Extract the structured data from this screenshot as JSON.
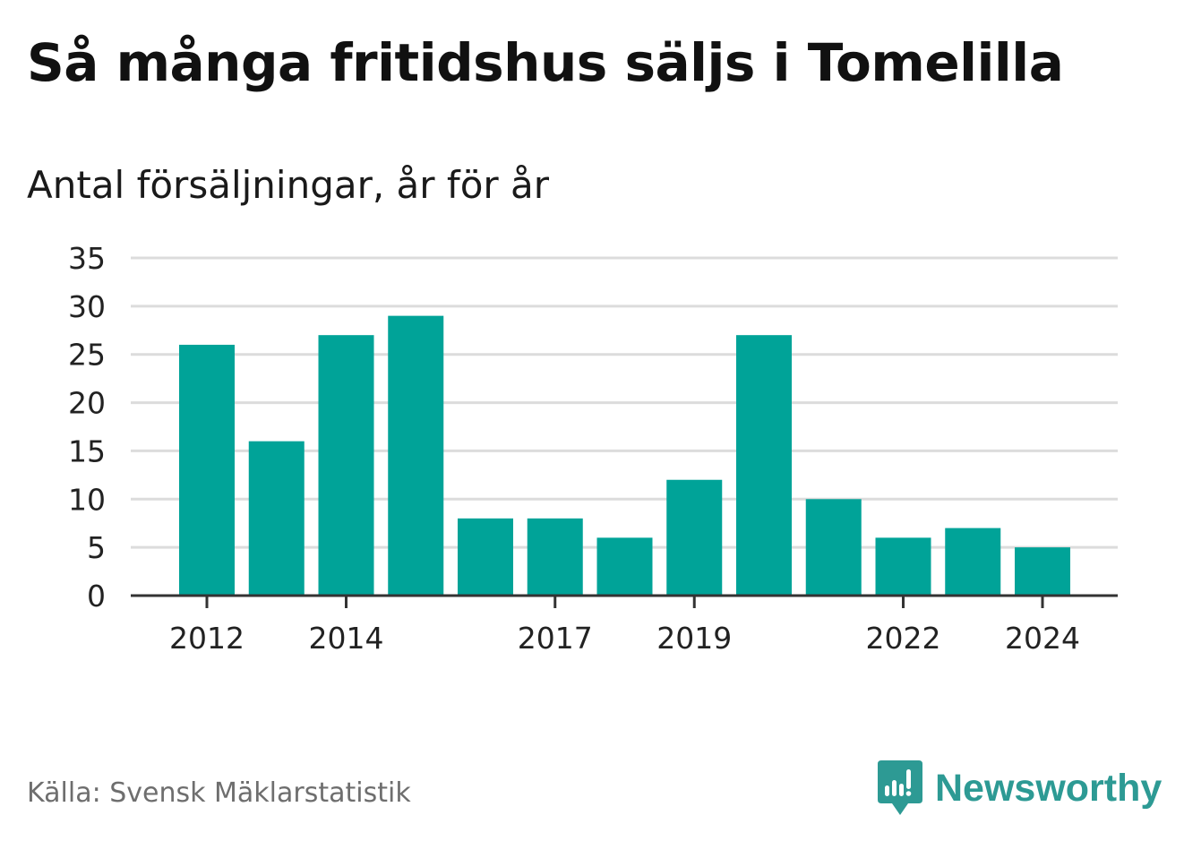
{
  "title": "Så många fritidshus säljs i Tomelilla",
  "subtitle": "Antal försäljningar, år för år",
  "source": "Källa: Svensk Mäklarstatistik",
  "brand": {
    "name": "Newsworthy",
    "icon": "newsworthy-logo-icon",
    "color": "#2d9a94"
  },
  "chart_data": {
    "type": "bar",
    "categories": [
      "2012",
      "2013",
      "2014",
      "2015",
      "2016",
      "2017",
      "2018",
      "2019",
      "2020",
      "2021",
      "2022",
      "2023",
      "2024"
    ],
    "values": [
      26,
      16,
      27,
      29,
      8,
      8,
      6,
      12,
      27,
      10,
      6,
      7,
      5
    ],
    "x_tick_labels": [
      "2012",
      "2014",
      "2017",
      "2019",
      "2022",
      "2024"
    ],
    "y_ticks": [
      0,
      5,
      10,
      15,
      20,
      25,
      30,
      35
    ],
    "ylim": [
      0,
      35
    ],
    "grid": true,
    "bar_color": "#00a398",
    "title": "Så många fritidshus säljs i Tomelilla",
    "subtitle": "Antal försäljningar, år för år",
    "xlabel": "",
    "ylabel": ""
  }
}
